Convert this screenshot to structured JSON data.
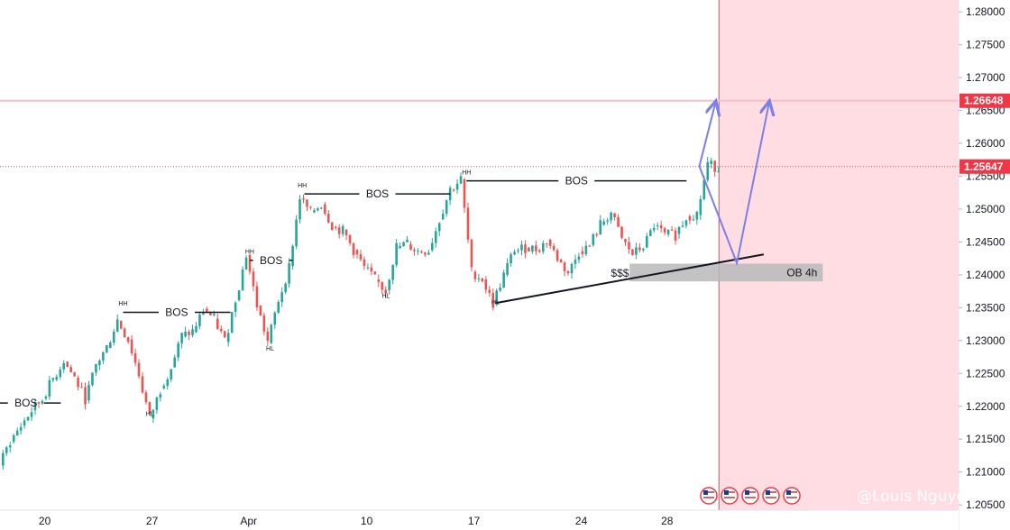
{
  "colors": {
    "up": "#26a69a",
    "down": "#ef5350",
    "forecast_zone": "#ffdde3",
    "target_line": "#f8c0cb",
    "current_line": "#e05060",
    "price_badge": "#f23645",
    "arrow": "#7b7fe8",
    "order_block": "#b8b8b8"
  },
  "chart_data": {
    "type": "candlestick",
    "y_axis": {
      "min": 1.2042,
      "max": 1.2818,
      "ticks": [
        "1.28000",
        "1.27500",
        "1.27000",
        "1.26500",
        "1.26000",
        "1.25500",
        "1.25000",
        "1.24500",
        "1.24000",
        "1.23500",
        "1.23000",
        "1.22500",
        "1.22000",
        "1.21500",
        "1.21000",
        "1.20500"
      ]
    },
    "x_axis": {
      "labels": [
        "20",
        "27",
        "Apr",
        "10",
        "17",
        "24",
        "28"
      ],
      "positions": [
        4,
        14,
        23,
        34,
        44,
        54,
        62
      ]
    },
    "bar_count": 67,
    "price_badges": [
      {
        "label": "1.26648",
        "value": 1.26648
      },
      {
        "label": "1.25647",
        "value": 1.25647
      }
    ],
    "anchors": [
      {
        "i": 0,
        "p": 1.212
      },
      {
        "i": 4,
        "p": 1.222
      },
      {
        "i": 6,
        "p": 1.228
      },
      {
        "i": 8,
        "p": 1.221
      },
      {
        "i": 11,
        "p": 1.2335
      },
      {
        "i": 13,
        "p": 1.225
      },
      {
        "i": 14,
        "p": 1.219
      },
      {
        "i": 17,
        "p": 1.23
      },
      {
        "i": 19,
        "p": 1.234
      },
      {
        "i": 21,
        "p": 1.231
      },
      {
        "i": 23,
        "p": 1.242
      },
      {
        "i": 25,
        "p": 1.229
      },
      {
        "i": 27,
        "p": 1.242
      },
      {
        "i": 28,
        "p": 1.251
      },
      {
        "i": 30,
        "p": 1.25
      },
      {
        "i": 32,
        "p": 1.247
      },
      {
        "i": 34,
        "p": 1.242
      },
      {
        "i": 36,
        "p": 1.237
      },
      {
        "i": 37,
        "p": 1.244
      },
      {
        "i": 40,
        "p": 1.244
      },
      {
        "i": 42,
        "p": 1.253
      },
      {
        "i": 43,
        "p": 1.2535
      },
      {
        "i": 44,
        "p": 1.24
      },
      {
        "i": 46,
        "p": 1.2365
      },
      {
        "i": 48,
        "p": 1.244
      },
      {
        "i": 51,
        "p": 1.245
      },
      {
        "i": 53,
        "p": 1.24
      },
      {
        "i": 55,
        "p": 1.245
      },
      {
        "i": 57,
        "p": 1.25
      },
      {
        "i": 59,
        "p": 1.243
      },
      {
        "i": 61,
        "p": 1.247
      },
      {
        "i": 63,
        "p": 1.246
      },
      {
        "i": 65,
        "p": 1.2495
      },
      {
        "i": 66,
        "p": 1.2565
      }
    ],
    "annotations": {
      "bos": [
        {
          "label": "BOS",
          "i1": -1,
          "i2": 5.5,
          "p": 1.2205
        },
        {
          "label": "BOS",
          "i1": 11.3,
          "i2": 21.3,
          "p": 1.2343
        },
        {
          "label": "BOS",
          "i1": 23.1,
          "i2": 27.1,
          "p": 1.2422
        },
        {
          "label": "BOS",
          "i1": 28.2,
          "i2": 41.8,
          "p": 1.2523
        },
        {
          "label": "BOS",
          "i1": 43.3,
          "i2": 63.8,
          "p": 1.2543
        }
      ],
      "swing_labels": [
        {
          "label": "HH",
          "i": 11.3,
          "p": 1.2353
        },
        {
          "label": "HL",
          "i": 13.8,
          "p": 1.2185
        },
        {
          "label": "HH",
          "i": 23.1,
          "p": 1.2432
        },
        {
          "label": "HL",
          "i": 25.0,
          "p": 1.2285
        },
        {
          "label": "HH",
          "i": 28.0,
          "p": 1.2533
        },
        {
          "label": "HL",
          "i": 35.8,
          "p": 1.2365
        },
        {
          "label": "HH",
          "i": 43.3,
          "p": 1.2553
        },
        {
          "label": "HL",
          "i": 46.0,
          "p": 1.2355
        }
      ],
      "trendline": {
        "i1": 46,
        "p1": 1.2357,
        "i2": 71,
        "p2": 1.2431
      },
      "liquidity_label": "$$$",
      "order_block": {
        "label": "OB 4h",
        "i1": 58.5,
        "i2": 76.5,
        "p_top": 1.2417,
        "p_bottom": 1.239
      },
      "projection": [
        {
          "i": 65,
          "p": 1.2565
        },
        {
          "i": 66.5,
          "p": 1.2662
        }
      ],
      "projection_long": [
        {
          "i": 65,
          "p": 1.2565
        },
        {
          "i": 68.5,
          "p": 1.2418
        },
        {
          "i": 71.5,
          "p": 1.2662
        }
      ]
    }
  },
  "footer": {
    "watermark": "@Louis Nguyen",
    "event_icons": [
      "us-flag-icon",
      "us-flag-icon",
      "us-flag-icon",
      "us-flag-icon",
      "us-flag-icon"
    ]
  }
}
